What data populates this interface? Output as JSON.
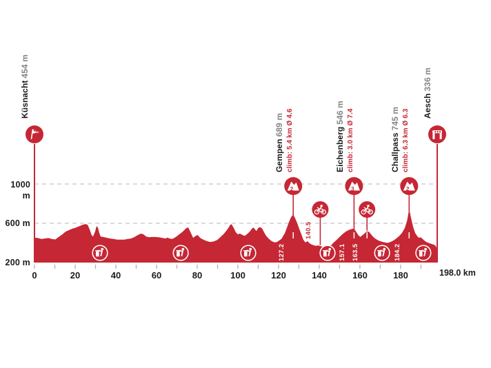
{
  "chart_data": {
    "type": "area",
    "x_axis": {
      "unit": "km",
      "max_km": 198,
      "tick_step_km": 10,
      "tick_labels": [
        "0",
        "20",
        "40",
        "60",
        "80",
        "100",
        "120",
        "140",
        "160",
        "180"
      ],
      "end_label": "198.0 km"
    },
    "y_axis": {
      "unit": "m",
      "base_m": 200,
      "tick_labels": [
        "200 m",
        "600 m",
        "1000 m"
      ],
      "grid_lines_m": [
        600,
        1000
      ]
    },
    "start": {
      "name": "Küsnacht",
      "altitude": "454 m",
      "km": 0
    },
    "finish": {
      "name": "Aesch",
      "altitude": "336 m",
      "km": 198
    },
    "climbs": [
      {
        "name": "Gempen",
        "altitude": "689 m",
        "climb_info": "climb: 5.4 km Ø 4.6",
        "km": 127.2,
        "summit_m": 689,
        "category": "2",
        "km_marker": "127.2"
      },
      {
        "name": "Eichenberg",
        "altitude": "546 m",
        "climb_info": "climb: 3.0 km Ø 7.4",
        "km": 157.1,
        "summit_m": 546,
        "category": "3",
        "km_marker": "157.1"
      },
      {
        "name": "Challpass",
        "altitude": "745 m",
        "climb_info": "climb: 6.3 km Ø 6.3",
        "km": 184.2,
        "summit_m": 745,
        "category": "2",
        "km_marker": "184.2"
      }
    ],
    "sprints": [
      {
        "km": 140.5,
        "km_marker": "140.5",
        "profile_m": 369
      },
      {
        "km": 163.5,
        "km_marker": "163.5",
        "profile_m": 518
      }
    ],
    "litter_zones_km": [
      32.2,
      71.9,
      105.1,
      144.1,
      170.9,
      191.2
    ],
    "profile_km_m": [
      [
        0,
        454
      ],
      [
        1.7,
        450
      ],
      [
        3.4,
        440
      ],
      [
        5.1,
        445
      ],
      [
        6.8,
        450
      ],
      [
        8.5,
        440
      ],
      [
        10.2,
        435
      ],
      [
        11.9,
        460
      ],
      [
        13.6,
        485
      ],
      [
        15.3,
        515
      ],
      [
        16.9,
        530
      ],
      [
        18.6,
        545
      ],
      [
        20.3,
        555
      ],
      [
        22,
        570
      ],
      [
        23.7,
        585
      ],
      [
        25.1,
        592
      ],
      [
        26.1,
        585
      ],
      [
        27.1,
        540
      ],
      [
        28.1,
        480
      ],
      [
        28.8,
        465
      ],
      [
        29.8,
        515
      ],
      [
        30.5,
        572
      ],
      [
        31.2,
        555
      ],
      [
        31.9,
        500
      ],
      [
        32.5,
        465
      ],
      [
        33.9,
        460
      ],
      [
        35.6,
        452
      ],
      [
        37.3,
        445
      ],
      [
        39,
        440
      ],
      [
        40.7,
        433
      ],
      [
        42.4,
        433
      ],
      [
        44.1,
        433
      ],
      [
        45.8,
        440
      ],
      [
        47.5,
        445
      ],
      [
        49.2,
        460
      ],
      [
        50.8,
        480
      ],
      [
        52.2,
        495
      ],
      [
        53.6,
        488
      ],
      [
        54.9,
        465
      ],
      [
        56.3,
        458
      ],
      [
        57.6,
        460
      ],
      [
        59.3,
        460
      ],
      [
        61,
        458
      ],
      [
        62.7,
        452
      ],
      [
        64.4,
        445
      ],
      [
        65.4,
        455
      ],
      [
        66.4,
        445
      ],
      [
        67.8,
        440
      ],
      [
        69.5,
        460
      ],
      [
        71.2,
        488
      ],
      [
        72.9,
        515
      ],
      [
        74.6,
        550
      ],
      [
        75.6,
        558
      ],
      [
        76.6,
        515
      ],
      [
        78,
        452
      ],
      [
        79.3,
        473
      ],
      [
        80.3,
        480
      ],
      [
        81.4,
        452
      ],
      [
        83.1,
        432
      ],
      [
        84.7,
        418
      ],
      [
        86.4,
        410
      ],
      [
        88.1,
        415
      ],
      [
        89.8,
        430
      ],
      [
        91.5,
        460
      ],
      [
        93.2,
        495
      ],
      [
        94.9,
        540
      ],
      [
        96.3,
        585
      ],
      [
        96.9,
        590
      ],
      [
        98,
        550
      ],
      [
        99,
        508
      ],
      [
        100,
        488
      ],
      [
        101,
        495
      ],
      [
        102.4,
        480
      ],
      [
        103.4,
        472
      ],
      [
        104.4,
        488
      ],
      [
        105.8,
        515
      ],
      [
        107.1,
        550
      ],
      [
        107.8,
        555
      ],
      [
        108.5,
        535
      ],
      [
        109.2,
        522
      ],
      [
        109.8,
        548
      ],
      [
        110.8,
        562
      ],
      [
        111.9,
        548
      ],
      [
        112.9,
        508
      ],
      [
        113.9,
        472
      ],
      [
        115.3,
        440
      ],
      [
        116.6,
        418
      ],
      [
        118,
        405
      ],
      [
        119.3,
        410
      ],
      [
        120.3,
        425
      ],
      [
        121.4,
        440
      ],
      [
        122,
        460
      ],
      [
        123.1,
        500
      ],
      [
        124.1,
        555
      ],
      [
        125.1,
        612
      ],
      [
        126.1,
        660
      ],
      [
        127.2,
        689
      ],
      [
        128.1,
        655
      ],
      [
        129.2,
        600
      ],
      [
        130.2,
        542
      ],
      [
        131.2,
        488
      ],
      [
        132.2,
        432
      ],
      [
        133.2,
        404
      ],
      [
        134.2,
        418
      ],
      [
        135.3,
        396
      ],
      [
        136.3,
        383
      ],
      [
        137.3,
        376
      ],
      [
        138.3,
        370
      ],
      [
        139.3,
        375
      ],
      [
        140.4,
        369
      ],
      [
        141.4,
        362
      ],
      [
        142.4,
        368
      ],
      [
        143.4,
        362
      ],
      [
        144.4,
        368
      ],
      [
        145.8,
        375
      ],
      [
        147.1,
        404
      ],
      [
        148.5,
        430
      ],
      [
        150,
        460
      ],
      [
        151.5,
        490
      ],
      [
        153,
        515
      ],
      [
        154.5,
        532
      ],
      [
        156,
        542
      ],
      [
        157.1,
        546
      ],
      [
        158.2,
        512
      ],
      [
        159.2,
        478
      ],
      [
        160.2,
        462
      ],
      [
        161.5,
        482
      ],
      [
        162.5,
        502
      ],
      [
        163.5,
        518
      ],
      [
        164.5,
        512
      ],
      [
        165.5,
        488
      ],
      [
        166.5,
        462
      ],
      [
        167.8,
        440
      ],
      [
        169.2,
        424
      ],
      [
        170.8,
        412
      ],
      [
        172.2,
        405
      ],
      [
        173.6,
        400
      ],
      [
        175,
        410
      ],
      [
        176.4,
        424
      ],
      [
        177.8,
        444
      ],
      [
        179.2,
        468
      ],
      [
        180.6,
        500
      ],
      [
        182,
        548
      ],
      [
        183.2,
        625
      ],
      [
        184.2,
        745
      ],
      [
        185.2,
        650
      ],
      [
        186.2,
        560
      ],
      [
        187.2,
        500
      ],
      [
        188.2,
        468
      ],
      [
        189,
        452
      ],
      [
        189.8,
        458
      ],
      [
        190.6,
        445
      ],
      [
        191.6,
        425
      ],
      [
        192.8,
        408
      ],
      [
        194,
        398
      ],
      [
        195.2,
        390
      ],
      [
        196.4,
        382
      ],
      [
        197.2,
        372
      ],
      [
        198,
        336
      ]
    ],
    "colors": {
      "red": "#c52734",
      "grey": "#848484",
      "black": "#1b1b1b",
      "grid": "#cfcfcf",
      "tick": "#b0b0b0",
      "white": "#ffffff"
    }
  }
}
